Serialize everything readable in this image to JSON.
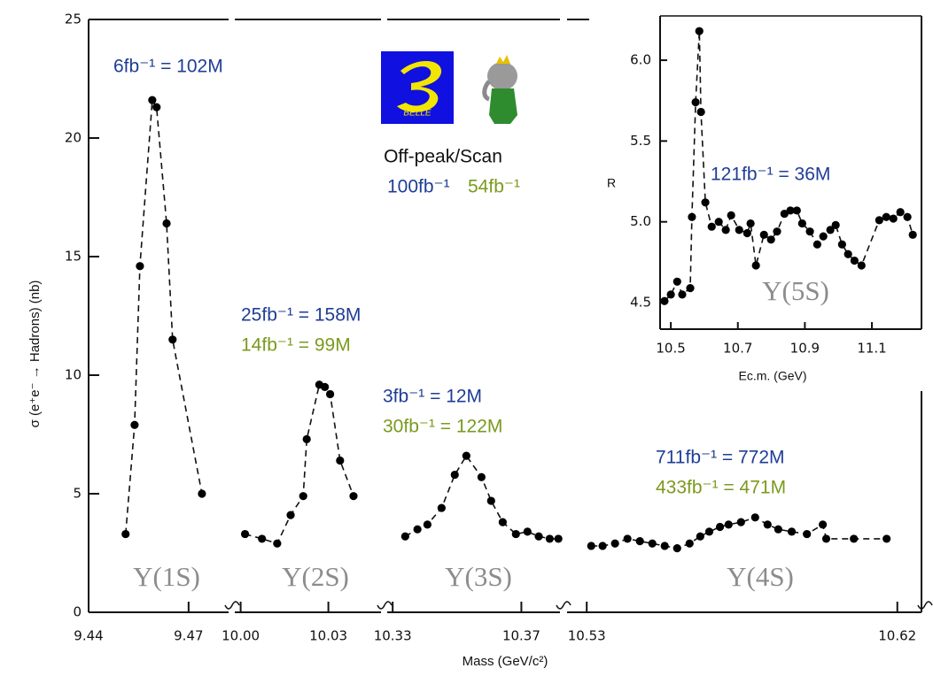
{
  "chart_data": [
    {
      "type": "scatter",
      "ylabel": "σ (e⁺e⁻ → Hadrons) (nb)",
      "xlabel": "Mass (GeV/c²)",
      "ylim": [
        0,
        25
      ],
      "yticks": [
        0,
        5,
        10,
        15,
        20,
        25
      ],
      "marker_color": "#000000",
      "belle_color": "#1f3d96",
      "babar_color": "#7a9a1e",
      "segments": [
        {
          "label": "Υ(1S)",
          "belle": "6fb⁻¹ = 102M",
          "xlim": [
            9.44,
            9.482
          ],
          "xticks": [
            9.44,
            9.47
          ],
          "x": [
            9.4511,
            9.4538,
            9.4554,
            9.4591,
            9.4604,
            9.4634,
            9.4652,
            9.474
          ],
          "values": [
            3.3,
            7.9,
            14.6,
            21.6,
            21.3,
            16.4,
            11.5,
            5.0
          ]
        },
        {
          "label": "Υ(2S)",
          "belle": "25fb⁻¹ = 158M",
          "babar": "14fb⁻¹ = 99M",
          "xlim": [
            9.998,
            10.048
          ],
          "xticks": [
            {
              "value": 10.0,
              "label": "10.00"
            },
            10.03
          ],
          "x": [
            10.0015,
            10.0073,
            10.0125,
            10.0171,
            10.0214,
            10.0226,
            10.0269,
            10.0288,
            10.0306,
            10.034,
            10.0386
          ],
          "values": [
            3.3,
            3.1,
            2.9,
            4.1,
            4.9,
            7.3,
            9.6,
            9.5,
            9.2,
            6.4,
            4.9
          ]
        },
        {
          "label": "Υ(3S)",
          "belle": "3fb⁻¹ = 12M",
          "babar": "30fb⁻¹ = 122M",
          "xlim": [
            10.3283,
            10.382
          ],
          "xticks": [
            10.33,
            10.37
          ],
          "x": [
            10.3339,
            10.3377,
            10.3408,
            10.3452,
            10.3493,
            10.3529,
            10.3576,
            10.3606,
            10.3642,
            10.3683,
            10.3719,
            10.3754,
            10.3788,
            10.3815
          ],
          "values": [
            3.2,
            3.5,
            3.7,
            4.4,
            5.8,
            6.6,
            5.7,
            4.7,
            3.8,
            3.3,
            3.4,
            3.2,
            3.1,
            3.1
          ]
        },
        {
          "label": "Υ(4S)",
          "belle": "711fb⁻¹ = 772M",
          "babar": "433fb⁻¹ = 471M",
          "xlim": [
            10.5243,
            10.627
          ],
          "xticks": [
            10.53,
            10.62
          ],
          "x": [
            10.5313,
            10.5346,
            10.5382,
            10.5418,
            10.5454,
            10.549,
            10.5526,
            10.5562,
            10.5598,
            10.5629,
            10.5655,
            10.5686,
            10.5711,
            10.5747,
            10.5788,
            10.5824,
            10.5855,
            10.5894,
            10.5938,
            10.5984,
            10.5994,
            10.6074,
            10.6169
          ],
          "values": [
            2.8,
            2.8,
            2.9,
            3.1,
            3.0,
            2.9,
            2.8,
            2.7,
            2.9,
            3.2,
            3.4,
            3.6,
            3.7,
            3.8,
            4.0,
            3.7,
            3.5,
            3.4,
            3.3,
            3.7,
            3.1,
            3.1,
            3.1
          ]
        }
      ],
      "offpeak": {
        "title": "Off-peak/Scan",
        "belle": "100fb⁻¹",
        "babar": "54fb⁻¹"
      },
      "logo": "BELLE"
    },
    {
      "type": "scatter",
      "ylabel": "R",
      "xlabel": "Ec.m. (GeV)",
      "xlim": [
        10.468,
        11.248
      ],
      "xticks": [
        10.5,
        10.7,
        10.9,
        11.1
      ],
      "ylim": [
        4.336,
        6.274
      ],
      "yticks": [
        {
          "value": 4.5,
          "label": "4.5"
        },
        {
          "value": 5,
          "label": "5.0"
        },
        {
          "value": 5.5,
          "label": "5.5"
        },
        {
          "value": 6,
          "label": "6.0"
        }
      ],
      "x": [
        10.481,
        10.5,
        10.519,
        10.534,
        10.558,
        10.563,
        10.574,
        10.585,
        10.59,
        10.603,
        10.622,
        10.643,
        10.664,
        10.68,
        10.704,
        10.728,
        10.738,
        10.754,
        10.778,
        10.799,
        10.817,
        10.839,
        10.857,
        10.876,
        10.892,
        10.915,
        10.937,
        10.955,
        10.976,
        10.992,
        11.011,
        11.029,
        11.048,
        11.069,
        11.122,
        11.143,
        11.164,
        11.185,
        11.206,
        11.222
      ],
      "values": [
        4.51,
        4.55,
        4.63,
        4.55,
        4.59,
        5.03,
        5.74,
        6.18,
        5.68,
        5.12,
        4.97,
        5.0,
        4.95,
        5.04,
        4.95,
        4.93,
        4.99,
        4.73,
        4.92,
        4.89,
        4.94,
        5.05,
        5.07,
        5.07,
        4.99,
        4.94,
        4.86,
        4.91,
        4.95,
        4.98,
        4.86,
        4.8,
        4.76,
        4.73,
        5.01,
        5.03,
        5.02,
        5.06,
        5.03,
        4.92
      ],
      "belle": "121fb⁻¹ = 36M",
      "label": "Υ(5S)"
    }
  ]
}
